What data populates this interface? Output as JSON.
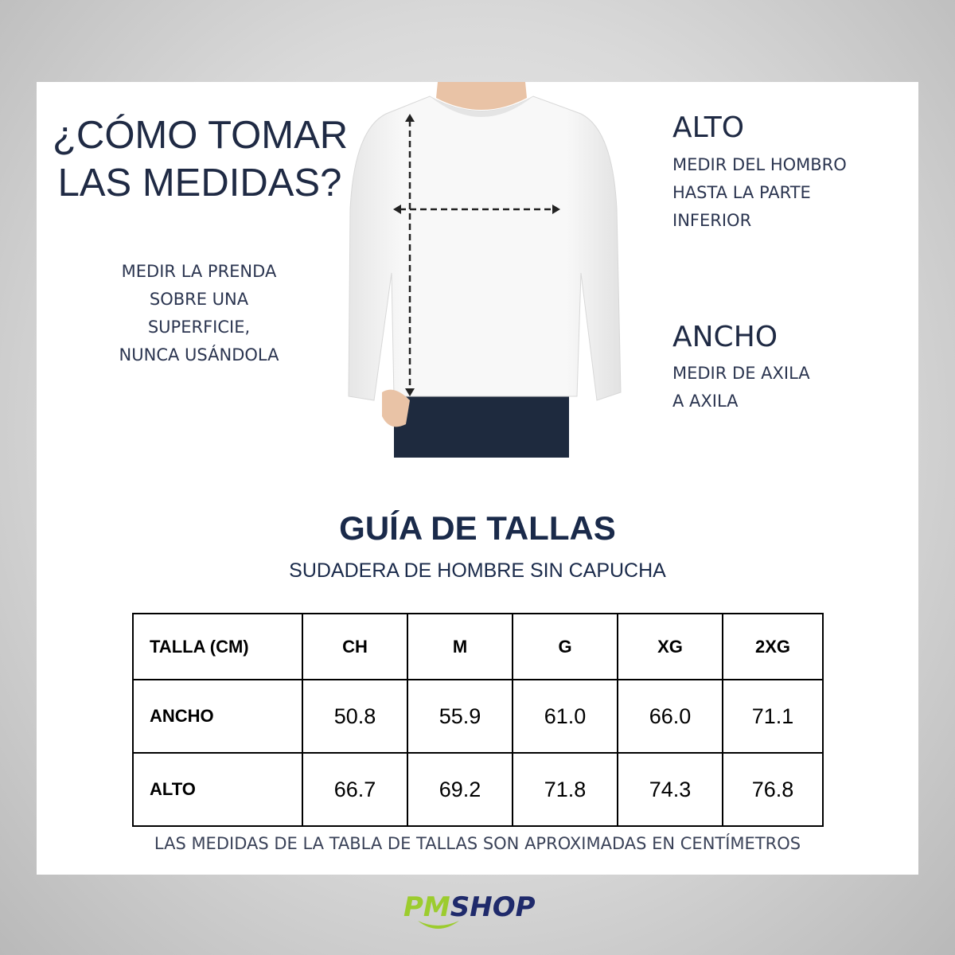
{
  "heading": {
    "line1": "¿CÓMO TOMAR",
    "line2": "LAS MEDIDAS?"
  },
  "left_note": [
    "MEDIR LA PRENDA",
    "SOBRE UNA",
    "SUPERFICIE,",
    "NUNCA USÁNDOLA"
  ],
  "alto": {
    "title": "ALTO",
    "lines": [
      "MEDIR DEL HOMBRO",
      "HASTA LA PARTE",
      "INFERIOR"
    ]
  },
  "ancho": {
    "title": "ANCHO",
    "lines": [
      "MEDIR DE AXILA",
      "A AXILA"
    ]
  },
  "guide": {
    "title": "GUÍA DE TALLAS",
    "subtitle": "SUDADERA DE HOMBRE SIN CAPUCHA"
  },
  "table": {
    "headers": [
      "TALLA (CM)",
      "CH",
      "M",
      "G",
      "XG",
      "2XG"
    ],
    "rows": [
      {
        "label": "ANCHO",
        "values": [
          "50.8",
          "55.9",
          "61.0",
          "66.0",
          "71.1"
        ]
      },
      {
        "label": "ALTO",
        "values": [
          "66.7",
          "69.2",
          "71.8",
          "74.3",
          "76.8"
        ]
      }
    ]
  },
  "footnote": "LAS MEDIDAS DE LA TABLA DE TALLAS SON APROXIMADAS EN CENTÍMETROS",
  "logo": {
    "part1": "PM",
    "part2": "SHOP",
    "color1": "#9ccc2e",
    "color2": "#1f2a6b"
  }
}
